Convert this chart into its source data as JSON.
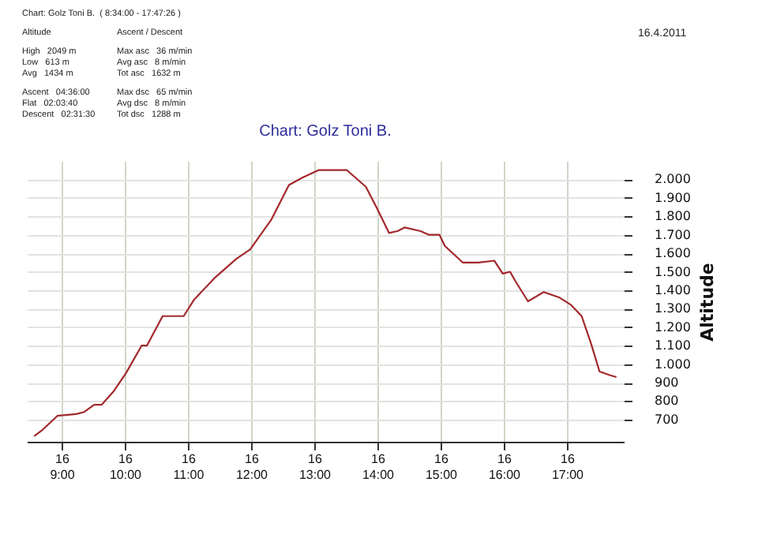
{
  "chart_data": {
    "type": "line",
    "title": "Chart: Golz Toni B.",
    "ylabel": "Altitude",
    "annotations": [
      "Chart: Golz Toni B.  ( 8:34:00 - 17:47:26 )",
      "Altitude",
      "High   2049 m",
      "Low   613 m",
      "Avg   1434 m",
      "Ascent   04:36:00",
      "Flat   02:03:40",
      "Descent   02:31:30",
      "Ascent / Descent",
      "Max asc   36 m/min",
      "Avg asc   8 m/min",
      "Tot asc   1632 m",
      "Max dsc   65 m/min",
      "Avg dsc   8 m/min",
      "Tot dsc   1288 m",
      "16.4.2011"
    ],
    "x": [
      "2011-04-16T08:34",
      "2011-04-16T08:41",
      "2011-04-16T08:56",
      "2011-04-16T09:14",
      "2011-04-16T09:21",
      "2011-04-16T09:31",
      "2011-04-16T09:38",
      "2011-04-16T09:49",
      "2011-04-16T10:01",
      "2011-04-16T10:16",
      "2011-04-16T10:21",
      "2011-04-16T10:36",
      "2011-04-16T10:56",
      "2011-04-16T11:06",
      "2011-04-16T11:26",
      "2011-04-16T11:46",
      "2011-04-16T11:59",
      "2011-04-16T12:19",
      "2011-04-16T12:36",
      "2011-04-16T12:49",
      "2011-04-16T13:04",
      "2011-04-16T13:31",
      "2011-04-16T13:49",
      "2011-04-16T13:59",
      "2011-04-16T14:11",
      "2011-04-16T14:19",
      "2011-04-16T14:26",
      "2011-04-16T14:41",
      "2011-04-16T14:49",
      "2011-04-16T14:59",
      "2011-04-16T15:04",
      "2011-04-16T15:21",
      "2011-04-16T15:36",
      "2011-04-16T15:51",
      "2011-04-16T15:59",
      "2011-04-16T16:06",
      "2011-04-16T16:11",
      "2011-04-16T16:23",
      "2011-04-16T16:38",
      "2011-04-16T16:53",
      "2011-04-16T17:04",
      "2011-04-16T17:14",
      "2011-04-16T17:23",
      "2011-04-16T17:31",
      "2011-04-16T17:41",
      "2011-04-16T17:47"
    ],
    "series": [
      {
        "color": "#a3282c",
        "values": [
          610,
          640,
          720,
          730,
          740,
          780,
          780,
          850,
          950,
          1100,
          1100,
          1260,
          1260,
          1350,
          1470,
          1570,
          1620,
          1780,
          1970,
          2010,
          2050,
          2050,
          1960,
          1850,
          1710,
          1720,
          1740,
          1720,
          1700,
          1700,
          1640,
          1550,
          1550,
          1560,
          1490,
          1500,
          1450,
          1340,
          1390,
          1360,
          1320,
          1260,
          1110,
          960,
          940,
          930
        ]
      }
    ],
    "xlim": [
      "2011-04-16T08:27",
      "2011-04-16T17:54"
    ],
    "xticks": [
      {
        "value": "2011-04-16T09:00",
        "label": "16\n9:00"
      },
      {
        "value": "2011-04-16T10:00",
        "label": "16\n10:00"
      },
      {
        "value": "2011-04-16T11:00",
        "label": "16\n11:00"
      },
      {
        "value": "2011-04-16T12:00",
        "label": "16\n12:00"
      },
      {
        "value": "2011-04-16T13:00",
        "label": "16\n13:00"
      },
      {
        "value": "2011-04-16T14:00",
        "label": "16\n14:00"
      },
      {
        "value": "2011-04-16T15:00",
        "label": "16\n15:00"
      },
      {
        "value": "2011-04-16T16:00",
        "label": "16\n16:00"
      },
      {
        "value": "2011-04-16T17:00",
        "label": "16\n17:00"
      }
    ],
    "ylim": [
      580,
      2100
    ],
    "yticks": [
      {
        "value": 700,
        "label": "700"
      },
      {
        "value": 800,
        "label": "800"
      },
      {
        "value": 900,
        "label": "900"
      },
      {
        "value": 1000,
        "label": "1.000"
      },
      {
        "value": 1100,
        "label": "1.100"
      },
      {
        "value": 1200,
        "label": "1.200"
      },
      {
        "value": 1300,
        "label": "1.300"
      },
      {
        "value": 1400,
        "label": "1.400"
      },
      {
        "value": 1500,
        "label": "1.500"
      },
      {
        "value": 1600,
        "label": "1.600"
      },
      {
        "value": 1700,
        "label": "1.700"
      },
      {
        "value": 1800,
        "label": "1.800"
      },
      {
        "value": 1900,
        "label": "1.900"
      },
      {
        "value": 2000,
        "label": "2.000"
      }
    ],
    "grid": true,
    "marker": "none",
    "line_style": "solid"
  }
}
